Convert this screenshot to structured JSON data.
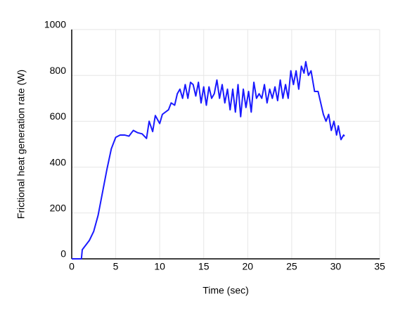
{
  "chart_data": {
    "type": "line",
    "x_label": "Time (sec)",
    "y_label": "Frictional heat generation rate (W)",
    "xlim": [
      0,
      35
    ],
    "xticks": [
      0,
      5,
      10,
      15,
      20,
      25,
      30,
      35
    ],
    "ylim": [
      0,
      1000
    ],
    "yticks": [
      0,
      200,
      400,
      600,
      800,
      1000
    ],
    "grid": true,
    "series": [
      {
        "color": "#1a1aff",
        "x": [
          0,
          1.1,
          1.2,
          2,
          2.5,
          3,
          3.5,
          4,
          4.5,
          5,
          5.5,
          6,
          6.5,
          7,
          7.5,
          8,
          8.5,
          8.8,
          9.2,
          9.5,
          10,
          10.3,
          11,
          11.3,
          11.7,
          12,
          12.3,
          12.6,
          12.9,
          13.2,
          13.5,
          13.8,
          14.1,
          14.4,
          14.7,
          15,
          15.3,
          15.6,
          15.9,
          16.2,
          16.5,
          16.8,
          17.1,
          17.4,
          17.7,
          18,
          18.3,
          18.6,
          18.9,
          19.2,
          19.5,
          19.8,
          20.1,
          20.4,
          20.7,
          21,
          21.3,
          21.6,
          21.9,
          22.2,
          22.5,
          22.8,
          23.1,
          23.4,
          23.7,
          24,
          24.3,
          24.6,
          24.9,
          25.2,
          25.5,
          25.8,
          26.1,
          26.4,
          26.6,
          26.9,
          27.2,
          27.6,
          28,
          28.3,
          28.6,
          28.9,
          29.2,
          29.5,
          29.8,
          30.1,
          30.3,
          30.6,
          30.9,
          31
        ],
        "values": [
          0,
          0,
          40,
          80,
          120,
          190,
          290,
          390,
          480,
          530,
          540,
          540,
          535,
          560,
          550,
          545,
          525,
          600,
          555,
          625,
          590,
          630,
          650,
          680,
          670,
          720,
          740,
          700,
          760,
          700,
          770,
          760,
          710,
          770,
          680,
          750,
          670,
          750,
          700,
          720,
          780,
          700,
          760,
          680,
          740,
          650,
          740,
          640,
          760,
          620,
          740,
          660,
          730,
          640,
          770,
          700,
          720,
          700,
          760,
          680,
          740,
          700,
          750,
          690,
          780,
          700,
          760,
          700,
          820,
          760,
          820,
          740,
          840,
          810,
          860,
          800,
          820,
          730,
          730,
          680,
          630,
          600,
          630,
          560,
          600,
          540,
          580,
          520,
          540,
          535
        ]
      }
    ]
  }
}
